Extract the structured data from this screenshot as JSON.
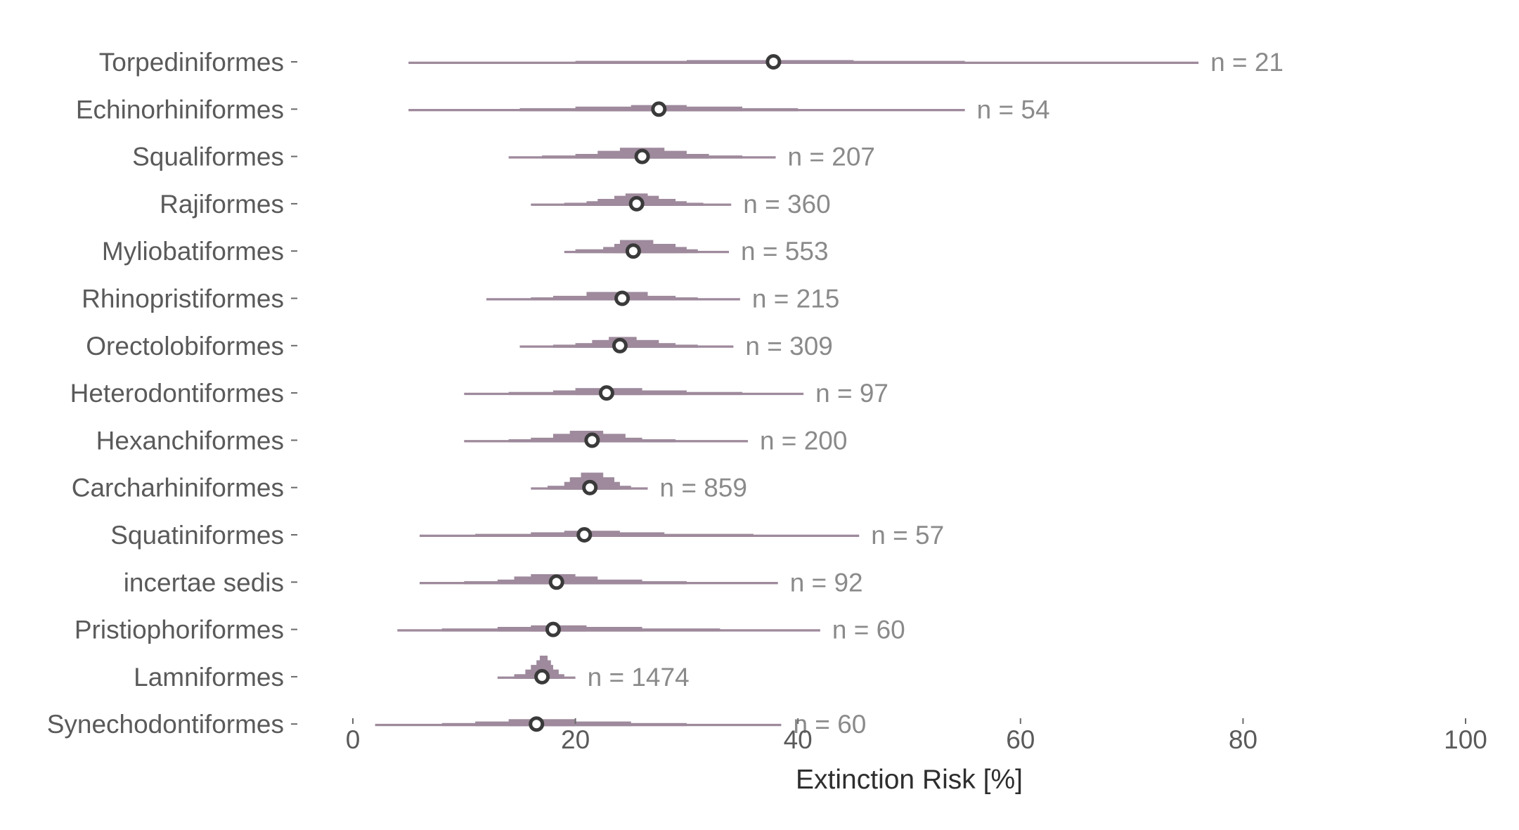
{
  "chart_data": {
    "type": "halfeye",
    "xlabel": "Extinction Risk [%]",
    "xlim": [
      0,
      100
    ],
    "xticks": [
      "0",
      "20",
      "40",
      "60",
      "80",
      "100"
    ],
    "xtick_values": [
      0,
      20,
      40,
      60,
      80,
      100
    ],
    "colors": {
      "dist": "#9e8a9c",
      "point_fill": "#ffffff",
      "point_stroke": "#3a3a3a",
      "n_text": "#8a8a8a"
    },
    "rows": [
      {
        "category": "Torpediniformes",
        "median": 37.8,
        "n_label": "n = 21",
        "bands": [
          [
            5,
            76,
            3
          ],
          [
            20,
            55,
            4
          ],
          [
            30,
            45,
            5
          ]
        ]
      },
      {
        "category": "Echinorhiniformes",
        "median": 27.5,
        "n_label": "n = 54",
        "bands": [
          [
            5,
            55,
            3
          ],
          [
            15,
            40,
            4
          ],
          [
            20,
            35,
            6
          ],
          [
            25,
            30,
            8
          ]
        ]
      },
      {
        "category": "Squaliformes",
        "median": 26.0,
        "n_label": "n = 207",
        "bands": [
          [
            14,
            38,
            3
          ],
          [
            17,
            35,
            4
          ],
          [
            20,
            32,
            6
          ],
          [
            22,
            30,
            10
          ],
          [
            24,
            28,
            14
          ]
        ]
      },
      {
        "category": "Rajiformes",
        "median": 25.5,
        "n_label": "n = 360",
        "bands": [
          [
            16,
            34,
            3
          ],
          [
            19,
            31.5,
            4
          ],
          [
            21,
            30,
            6
          ],
          [
            22,
            29,
            9
          ],
          [
            23.5,
            27.5,
            13
          ],
          [
            24.5,
            26.5,
            16
          ]
        ]
      },
      {
        "category": "Myliobatiformes",
        "median": 25.2,
        "n_label": "n = 553",
        "bands": [
          [
            19,
            33.8,
            3
          ],
          [
            20,
            31,
            5
          ],
          [
            22.5,
            30,
            8
          ],
          [
            23.5,
            29,
            12
          ],
          [
            24,
            27,
            17
          ]
        ]
      },
      {
        "category": "Rhinopristiformes",
        "median": 24.2,
        "n_label": "n = 215",
        "bands": [
          [
            12,
            34.8,
            3
          ],
          [
            16,
            31,
            4
          ],
          [
            18,
            29,
            6
          ],
          [
            21,
            26.5,
            11
          ]
        ]
      },
      {
        "category": "Orectolobiformes",
        "median": 24.0,
        "n_label": "n = 309",
        "bands": [
          [
            15,
            34.2,
            3
          ],
          [
            18,
            31,
            4
          ],
          [
            20,
            29,
            6
          ],
          [
            21.5,
            27.5,
            10
          ],
          [
            23,
            25.5,
            14
          ]
        ]
      },
      {
        "category": "Heterodontiformes",
        "median": 22.8,
        "n_label": "n = 97",
        "bands": [
          [
            10,
            40.5,
            3
          ],
          [
            14,
            35,
            4
          ],
          [
            18,
            30,
            6
          ],
          [
            20,
            26,
            9
          ]
        ]
      },
      {
        "category": "Hexanchiformes",
        "median": 21.5,
        "n_label": "n = 200",
        "bands": [
          [
            10,
            35.5,
            3
          ],
          [
            14,
            29,
            4
          ],
          [
            16,
            26,
            6
          ],
          [
            18,
            24.5,
            11
          ],
          [
            19.5,
            22.5,
            15
          ]
        ]
      },
      {
        "category": "Carcharhiniformes",
        "median": 21.3,
        "n_label": "n = 859",
        "bands": [
          [
            16,
            26.5,
            3
          ],
          [
            17.5,
            25,
            5
          ],
          [
            19,
            24,
            10
          ],
          [
            19.5,
            23.5,
            16
          ],
          [
            20.5,
            22.5,
            22
          ]
        ]
      },
      {
        "category": "Squatiniformes",
        "median": 20.8,
        "n_label": "n = 57",
        "bands": [
          [
            6,
            45.5,
            3
          ],
          [
            11,
            36,
            4
          ],
          [
            16,
            28,
            6
          ],
          [
            19,
            24,
            8
          ]
        ]
      },
      {
        "category": "incertae sedis",
        "median": 18.3,
        "n_label": "n = 92",
        "bands": [
          [
            6,
            38.2,
            3
          ],
          [
            10,
            30,
            4
          ],
          [
            13,
            26,
            6
          ],
          [
            14.5,
            22,
            10
          ],
          [
            16,
            20,
            13
          ]
        ]
      },
      {
        "category": "Pristiophoriformes",
        "median": 18.0,
        "n_label": "n = 60",
        "bands": [
          [
            4,
            42,
            3
          ],
          [
            8,
            33,
            4
          ],
          [
            13,
            26,
            6
          ],
          [
            16,
            21,
            8
          ]
        ]
      },
      {
        "category": "Lamniformes",
        "median": 17.0,
        "n_label": "n = 1474",
        "bands": [
          [
            13,
            20,
            3
          ],
          [
            14.5,
            19,
            6
          ],
          [
            15.5,
            18.5,
            12
          ],
          [
            16,
            18,
            18
          ],
          [
            16.5,
            17.8,
            24
          ],
          [
            16.8,
            17.5,
            30
          ]
        ]
      },
      {
        "category": "Synechodontiformes",
        "median": 16.5,
        "n_label": "n = 60",
        "bands": [
          [
            2,
            38.5,
            3
          ],
          [
            8,
            30,
            4
          ],
          [
            11,
            25,
            6
          ],
          [
            14,
            20,
            9
          ]
        ]
      }
    ]
  }
}
